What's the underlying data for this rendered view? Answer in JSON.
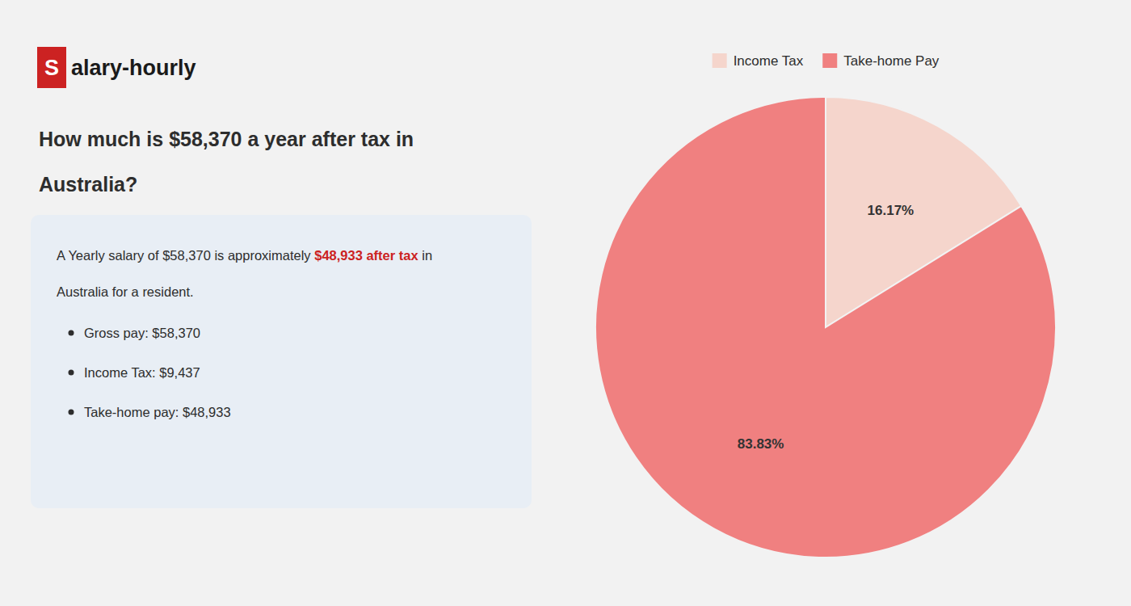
{
  "chart_data": {
    "type": "pie",
    "title": [
      "How much is $58,370 a year after tax in",
      "Australia?"
    ],
    "annotations": [
      [
        {
          "text": "S",
          "color": "#cc2222"
        },
        {
          "text": "alary-hourly"
        }
      ],
      [
        {
          "text": "A Yearly salary of $58,370 is approximately "
        },
        {
          "text": "$48,933 after tax",
          "color": "#cc2222"
        },
        {
          "text": " in"
        }
      ],
      [
        {
          "text": "Australia for a resident."
        }
      ],
      [
        {
          "text": "Gross pay: $58,370"
        }
      ],
      [
        {
          "text": "Income Tax: $9,437"
        }
      ],
      [
        {
          "text": "Take-home pay: $48,933"
        }
      ]
    ],
    "categories": [
      "Income Tax",
      "Take-home Pay"
    ],
    "values": [
      16.17,
      83.83
    ],
    "value_labels": [
      "16.17%",
      "83.83%"
    ],
    "colors": [
      "#f5d5cc",
      "#f08080"
    ],
    "data_labels": true,
    "legend": "top"
  }
}
